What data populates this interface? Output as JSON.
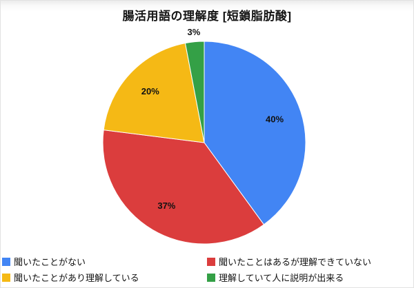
{
  "title": "腸活用語の理解度 [短鎖脂肪酸]",
  "chart_data": {
    "type": "pie",
    "title": "腸活用語の理解度 [短鎖脂肪酸]",
    "start_angle_deg": 0,
    "direction": "clockwise",
    "legend_position": "bottom",
    "labels_format": "percent",
    "slices": [
      {
        "label": "聞いたことがない",
        "value": 40,
        "pct_label": "40%",
        "color": "#4285f4"
      },
      {
        "label": "聞いたことはあるが理解できていない",
        "value": 37,
        "pct_label": "37%",
        "color": "#db3d3d"
      },
      {
        "label": "聞いたことがあり理解している",
        "value": 20,
        "pct_label": "20%",
        "color": "#f5b915"
      },
      {
        "label": "理解していて人に説明が出来る",
        "value": 3,
        "pct_label": "3%",
        "color": "#34a046"
      }
    ]
  }
}
